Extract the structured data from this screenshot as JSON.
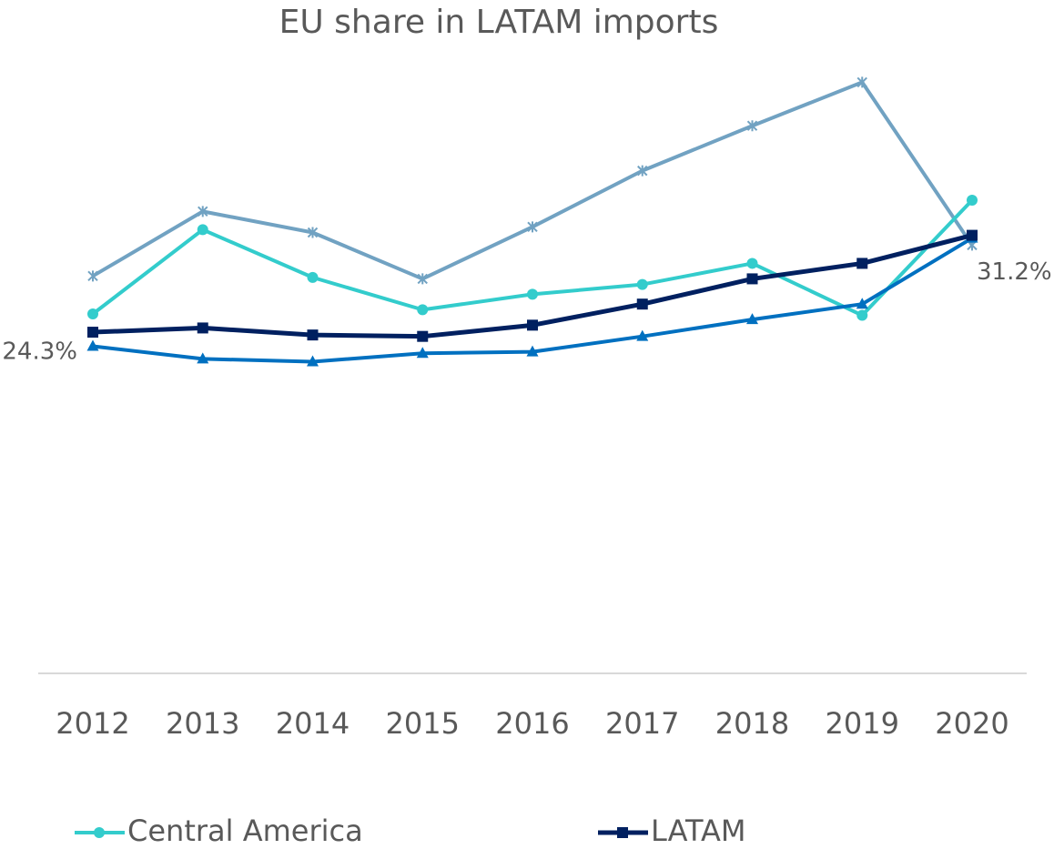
{
  "chart_data": {
    "type": "line",
    "title": "EU share in LATAM imports",
    "categories": [
      "2012",
      "2013",
      "2014",
      "2015",
      "2016",
      "2017",
      "2018",
      "2019",
      "2020"
    ],
    "ylim": [
      0,
      45
    ],
    "series": [
      {
        "name": "Central America",
        "color": "#33cccc",
        "marker": "circle",
        "width": 4,
        "values": [
          25.6,
          31.6,
          28.2,
          25.9,
          27.0,
          27.7,
          29.2,
          25.5,
          33.7
        ]
      },
      {
        "name": "LATAM",
        "color": "#002060",
        "marker": "square",
        "width": 5,
        "values": [
          24.3,
          24.6,
          24.1,
          24.0,
          24.8,
          26.3,
          28.1,
          29.2,
          31.2
        ],
        "value_labels": [
          "24.3%",
          null,
          null,
          null,
          null,
          null,
          null,
          null,
          "31.2%"
        ]
      },
      {
        "color": "#0070c0",
        "marker": "triangle",
        "width": 4,
        "values": [
          23.3,
          22.4,
          22.2,
          22.8,
          22.9,
          24.0,
          25.2,
          26.3,
          31.0
        ]
      },
      {
        "color": "#71a2c2",
        "marker": "x",
        "width": 4,
        "values": [
          28.3,
          32.9,
          31.4,
          28.1,
          31.8,
          35.8,
          39.0,
          42.1,
          30.5
        ]
      }
    ]
  }
}
